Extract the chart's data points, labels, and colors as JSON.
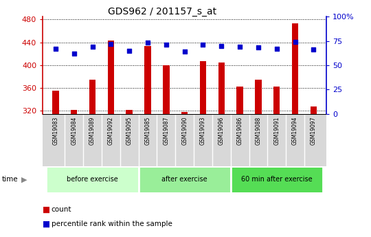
{
  "title": "GDS962 / 201157_s_at",
  "samples": [
    "GSM19083",
    "GSM19084",
    "GSM19089",
    "GSM19092",
    "GSM19095",
    "GSM19085",
    "GSM19087",
    "GSM19090",
    "GSM19093",
    "GSM19096",
    "GSM19086",
    "GSM19088",
    "GSM19091",
    "GSM19094",
    "GSM19097"
  ],
  "counts": [
    355,
    322,
    375,
    443,
    322,
    433,
    400,
    318,
    407,
    405,
    362,
    375,
    362,
    473,
    328
  ],
  "percentile_ranks": [
    67,
    62,
    69,
    72,
    65,
    73,
    71,
    64,
    71,
    70,
    69,
    68,
    67,
    74,
    66
  ],
  "ylim": [
    315,
    485
  ],
  "yticks": [
    320,
    360,
    400,
    440,
    480
  ],
  "y2lim": [
    0,
    100
  ],
  "y2ticks": [
    0,
    25,
    50,
    75,
    100
  ],
  "y2ticklabels": [
    "0",
    "25",
    "50",
    "75",
    "100%"
  ],
  "bar_color": "#cc0000",
  "dot_color": "#0000cc",
  "groups": [
    {
      "label": "before exercise",
      "start": 0,
      "end": 5,
      "color": "#ccffcc"
    },
    {
      "label": "after exercise",
      "start": 5,
      "end": 10,
      "color": "#99ee99"
    },
    {
      "label": "60 min after exercise",
      "start": 10,
      "end": 15,
      "color": "#55dd55"
    }
  ],
  "grid_color": "#000000",
  "axis_color_left": "#cc0000",
  "axis_color_right": "#0000cc",
  "tick_label_color_left": "#cc0000",
  "tick_label_color_right": "#0000cc",
  "bar_width": 0.35,
  "legend_items": [
    "count",
    "percentile rank within the sample"
  ],
  "legend_colors": [
    "#cc0000",
    "#0000cc"
  ],
  "bg_plot": "#ffffff",
  "bg_gray": "#d8d8d8"
}
